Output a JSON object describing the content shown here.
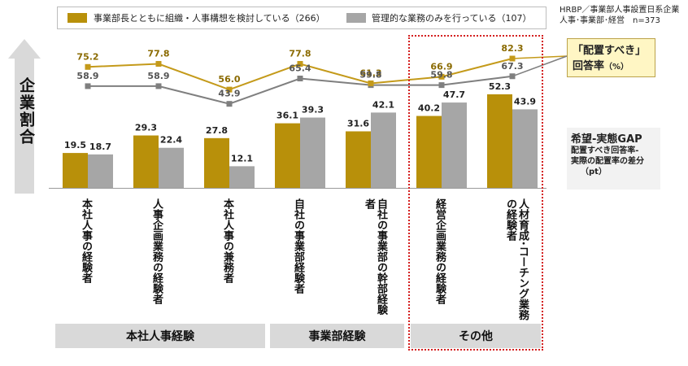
{
  "legend": {
    "series1": "事業部長とともに組織・人事構想を検討している（266）",
    "series2": "管理的な業務のみを行っている（107）"
  },
  "source": {
    "line1": "HRBP／事業部人事設置日系企業",
    "line2": "人事･事業部･経営　n=373"
  },
  "ylabel": "企業割合",
  "callouts": {
    "rate_title": "「配置すべき」",
    "rate_sub": "回答率",
    "rate_unit": "（%）",
    "gap_title": "希望-実態GAP",
    "gap_line1": "配置すべき回答率-",
    "gap_line2": "実際の配置率の差分",
    "gap_line3": "（pt）"
  },
  "groups": [
    {
      "label": "本社人事経験"
    },
    {
      "label": "事業部経験"
    },
    {
      "label": "その他"
    }
  ],
  "colors": {
    "series1": "#b8900a",
    "series2": "#a6a6a6",
    "line1": "#c49a1a",
    "line2": "#7f7f7f",
    "highlight": "#d42020"
  },
  "chart_data": {
    "type": "bar",
    "categories": [
      "本社人事の経験者",
      "人事企画業務の経験者",
      "本社人事の兼務者",
      "自社の事業部経験者",
      "自社の事業部の幹部経験者",
      "経営企画業務の経験者",
      "人材育成･コーチング業務の経験者"
    ],
    "series": [
      {
        "name": "事業部長とともに組織・人事構想を検討している（266）",
        "kind": "bar",
        "values": [
          19.5,
          29.3,
          27.8,
          36.1,
          31.6,
          40.2,
          52.3
        ]
      },
      {
        "name": "管理的な業務のみを行っている（107）",
        "kind": "bar",
        "values": [
          18.7,
          22.4,
          12.1,
          39.3,
          42.1,
          47.7,
          43.9
        ]
      },
      {
        "name": "事業部長とともに組織・人事構想を検討している（266）",
        "kind": "line",
        "values": [
          75.2,
          77.8,
          56.0,
          77.8,
          61.3,
          66.9,
          82.3
        ]
      },
      {
        "name": "管理的な業務のみを行っている（107）",
        "kind": "line",
        "values": [
          58.9,
          58.9,
          43.9,
          65.4,
          59.8,
          59.8,
          67.3
        ]
      }
    ],
    "ylim": [
      0,
      100
    ],
    "grid": false,
    "legend_position": "top"
  }
}
